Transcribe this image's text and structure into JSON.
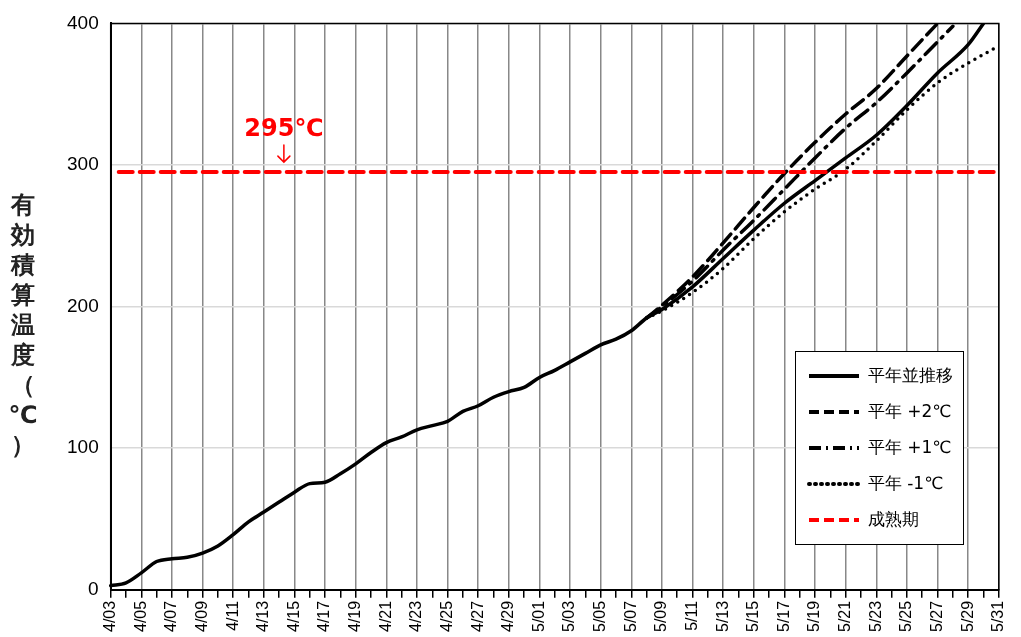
{
  "chart_data": {
    "type": "line",
    "ylabel": "有効積算温度（℃）",
    "categories": [
      "4/03",
      null,
      "4/05",
      null,
      "4/07",
      null,
      "4/09",
      null,
      "4/11",
      null,
      "4/13",
      null,
      "4/15",
      null,
      "4/17",
      null,
      "4/19",
      null,
      "4/21",
      null,
      "4/23",
      null,
      "4/25",
      null,
      "4/27",
      null,
      "4/29",
      null,
      "5/01",
      null,
      "5/03",
      null,
      "5/05",
      null,
      "5/07",
      null,
      "5/09",
      null,
      "5/11",
      null,
      "5/13",
      null,
      "5/15",
      null,
      "5/17",
      null,
      "5/19",
      null,
      "5/21",
      null,
      "5/23",
      null,
      "5/25",
      null,
      "5/27",
      null,
      "5/29",
      null,
      "5/31"
    ],
    "series": [
      {
        "name": "平年並推移",
        "color": "#000000",
        "line_style": "solid",
        "values": [
          3,
          5,
          12,
          20,
          22,
          23,
          26,
          31,
          39,
          48,
          55,
          62,
          69,
          75,
          76,
          82,
          89,
          97,
          104,
          108,
          113,
          116,
          119,
          126,
          130,
          136,
          140,
          143,
          150,
          155,
          161,
          167,
          173,
          177,
          183,
          192,
          198,
          null,
          214,
          null,
          234,
          null,
          254,
          null,
          273,
          null,
          289,
          null,
          305,
          null,
          321,
          null,
          342,
          null,
          365,
          null,
          385,
          400,
          null
        ]
      },
      {
        "name": "平年 +2℃",
        "color": "#000000",
        "line_style": "dashed",
        "values": [
          null,
          null,
          null,
          null,
          null,
          null,
          null,
          null,
          null,
          null,
          null,
          null,
          null,
          null,
          null,
          null,
          null,
          null,
          null,
          null,
          null,
          null,
          null,
          null,
          null,
          null,
          null,
          null,
          null,
          null,
          null,
          null,
          null,
          null,
          null,
          192,
          201,
          null,
          221,
          null,
          245,
          null,
          270,
          null,
          294,
          null,
          316,
          null,
          336,
          null,
          354,
          null,
          377,
          null,
          400,
          null,
          null,
          null,
          null
        ]
      },
      {
        "name": "平年 +1℃",
        "color": "#000000",
        "line_style": "dashdot",
        "values": [
          null,
          null,
          null,
          null,
          null,
          null,
          null,
          null,
          null,
          null,
          null,
          null,
          null,
          null,
          null,
          null,
          null,
          null,
          null,
          null,
          null,
          null,
          null,
          null,
          null,
          null,
          null,
          null,
          null,
          null,
          null,
          null,
          null,
          null,
          null,
          192,
          200,
          null,
          218,
          null,
          240,
          null,
          261,
          null,
          283,
          null,
          305,
          null,
          326,
          null,
          344,
          null,
          365,
          null,
          387,
          398,
          null,
          null,
          null
        ]
      },
      {
        "name": "平年 -1℃",
        "color": "#000000",
        "line_style": "dotted",
        "values": [
          null,
          null,
          null,
          null,
          null,
          null,
          null,
          null,
          null,
          null,
          null,
          null,
          null,
          null,
          null,
          null,
          null,
          null,
          null,
          null,
          null,
          null,
          null,
          null,
          null,
          null,
          null,
          null,
          null,
          null,
          null,
          null,
          null,
          null,
          null,
          192,
          197,
          null,
          210,
          null,
          227,
          null,
          248,
          null,
          267,
          null,
          283,
          null,
          297,
          null,
          317,
          null,
          339,
          null,
          358,
          null,
          372,
          null,
          384
        ]
      }
    ],
    "ylim": [
      0,
      400
    ],
    "yticks": [
      0,
      100,
      200,
      300,
      400
    ],
    "grid": true,
    "legend": "bottom right",
    "marker": "none",
    "ref_lines": [
      {
        "axis": "y",
        "value": 295,
        "label": "成熟期",
        "color": "#ff0000",
        "line_style": "dashed"
      }
    ],
    "annotations": [
      {
        "text": "295℃",
        "y": 295
      }
    ]
  }
}
